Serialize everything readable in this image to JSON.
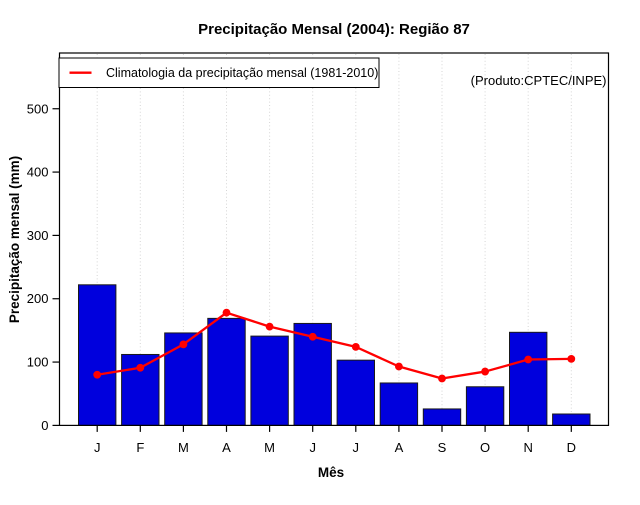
{
  "chart": {
    "title": "Precipitação Mensal (2004): Região 87",
    "xlabel": "Mês",
    "ylabel": "Precipitação mensal (mm)",
    "legend_label": "Climatologia da precipitação mensal (1981-2010)",
    "product_note": "(Produto:CPTEC/INPE)"
  },
  "chart_data": {
    "type": "bar",
    "title": "Precipitação Mensal (2004): Região 87",
    "xlabel": "Mês",
    "ylabel": "Precipitação mensal (mm)",
    "categories": [
      "J",
      "F",
      "M",
      "A",
      "M",
      "J",
      "J",
      "A",
      "S",
      "O",
      "N",
      "D"
    ],
    "series": [
      {
        "name": "Precipitação mensal 2004",
        "type": "bar",
        "values": [
          222,
          112,
          146,
          169,
          141,
          161,
          103,
          67,
          26,
          61,
          147,
          18
        ]
      },
      {
        "name": "Climatologia da precipitação mensal (1981-2010)",
        "type": "line",
        "values": [
          80,
          91,
          128,
          178,
          156,
          140,
          124,
          93,
          74,
          85,
          104,
          105
        ]
      }
    ],
    "y_ticks": [
      0,
      100,
      200,
      300,
      400,
      500
    ],
    "ylim": [
      0,
      588
    ],
    "grid": "vertical-dotted-at-each-month",
    "legend_position": "top-left",
    "annotation": "(Produto:CPTEC/INPE)"
  },
  "colors": {
    "bar_fill": "#0000DD",
    "bar_border": "#1A1A1A",
    "line": "#FF0000",
    "grid": "#D5D5D5",
    "axis": "#000000",
    "credit_text": "#969696"
  }
}
